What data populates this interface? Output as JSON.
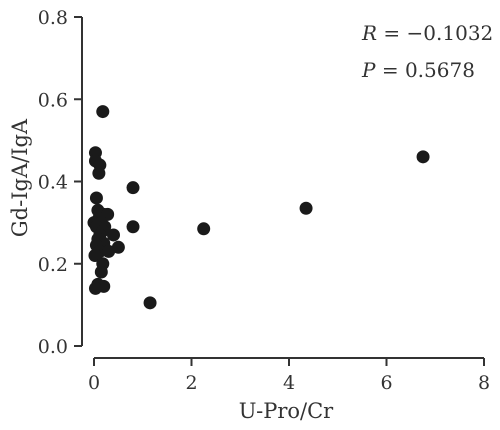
{
  "chart_data": {
    "type": "scatter",
    "xlabel": "U-Pro/Cr",
    "ylabel": "Gd-IgA/IgA",
    "xlim": [
      0,
      8
    ],
    "ylim": [
      0,
      0.8
    ],
    "x_ticks": [
      "0",
      "2",
      "4",
      "6",
      "8"
    ],
    "y_ticks": [
      "0.0",
      "0.2",
      "0.4",
      "0.6",
      "0.8"
    ],
    "x_tick_values": [
      0,
      2,
      4,
      6,
      8
    ],
    "y_tick_values": [
      0,
      0.2,
      0.4,
      0.6,
      0.8
    ],
    "grid": false,
    "annotations": {
      "r_symbol": "R",
      "r_value": " = −0.1032",
      "p_symbol": "P",
      "p_value": " = 0.5678"
    },
    "marker_color": "#1a1a1a",
    "points": [
      {
        "x": 0.03,
        "y": 0.47
      },
      {
        "x": 0.03,
        "y": 0.45
      },
      {
        "x": 0.12,
        "y": 0.44
      },
      {
        "x": 0.1,
        "y": 0.42
      },
      {
        "x": 0.18,
        "y": 0.57
      },
      {
        "x": 0.05,
        "y": 0.36
      },
      {
        "x": 0.08,
        "y": 0.33
      },
      {
        "x": 0.2,
        "y": 0.32
      },
      {
        "x": 0.28,
        "y": 0.32
      },
      {
        "x": 0.1,
        "y": 0.31
      },
      {
        "x": 0.0,
        "y": 0.3
      },
      {
        "x": 0.15,
        "y": 0.3
      },
      {
        "x": 0.22,
        "y": 0.29
      },
      {
        "x": 0.05,
        "y": 0.29
      },
      {
        "x": 0.18,
        "y": 0.28
      },
      {
        "x": 0.12,
        "y": 0.27
      },
      {
        "x": 0.4,
        "y": 0.27
      },
      {
        "x": 0.08,
        "y": 0.26
      },
      {
        "x": 0.2,
        "y": 0.25
      },
      {
        "x": 0.05,
        "y": 0.245
      },
      {
        "x": 0.5,
        "y": 0.24
      },
      {
        "x": 0.12,
        "y": 0.23
      },
      {
        "x": 0.3,
        "y": 0.23
      },
      {
        "x": 0.02,
        "y": 0.22
      },
      {
        "x": 0.18,
        "y": 0.2
      },
      {
        "x": 0.15,
        "y": 0.18
      },
      {
        "x": 0.08,
        "y": 0.15
      },
      {
        "x": 0.2,
        "y": 0.145
      },
      {
        "x": 0.03,
        "y": 0.14
      },
      {
        "x": 0.8,
        "y": 0.385
      },
      {
        "x": 0.8,
        "y": 0.29
      },
      {
        "x": 1.15,
        "y": 0.105
      },
      {
        "x": 2.25,
        "y": 0.285
      },
      {
        "x": 4.35,
        "y": 0.335
      },
      {
        "x": 6.75,
        "y": 0.46
      }
    ]
  }
}
